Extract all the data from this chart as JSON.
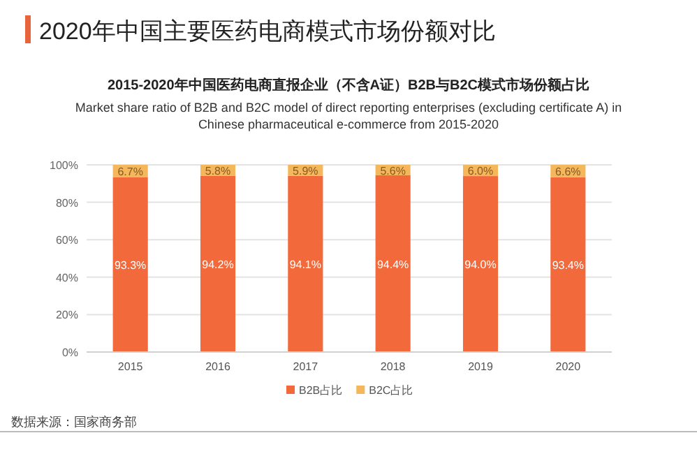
{
  "chart_data": {
    "type": "bar",
    "stacked": true,
    "title": "2020年中国主要医药电商模式市场份额对比",
    "subtitle": "2015-2020年中国医药电商直报企业（不含A证）B2B与B2C模式市场份额占比",
    "annotations": [
      "Market share ratio of B2B and B2C model of direct reporting enterprises (excluding certificate A) in Chinese pharmaceutical e-commerce from 2015-2020",
      "数据来源：国家商务部"
    ],
    "categories": [
      "2015",
      "2016",
      "2017",
      "2018",
      "2019",
      "2020"
    ],
    "series": [
      {
        "name": "B2B占比",
        "color": "#f26a3c",
        "values": [
          93.3,
          94.2,
          94.1,
          94.4,
          94.0,
          93.4
        ],
        "value_labels": [
          "93.3%",
          "94.2%",
          "94.1%",
          "94.4%",
          "94.0%",
          "93.4%"
        ]
      },
      {
        "name": "B2C占比",
        "color": "#f5b75c",
        "values": [
          6.7,
          5.8,
          5.9,
          5.6,
          6.0,
          6.6
        ],
        "value_labels": [
          "6.7%",
          "5.8%",
          "5.9%",
          "5.6%",
          "6.0%",
          "6.6%"
        ]
      }
    ],
    "ylim": [
      0,
      100
    ],
    "yticks": [
      {
        "value": 0,
        "label": "0%"
      },
      {
        "value": 20,
        "label": "20%"
      },
      {
        "value": 40,
        "label": "40%"
      },
      {
        "value": 60,
        "label": "60%"
      },
      {
        "value": 80,
        "label": "80%"
      },
      {
        "value": 100,
        "label": "100%"
      }
    ],
    "grid": "y",
    "legend": "bottom"
  }
}
